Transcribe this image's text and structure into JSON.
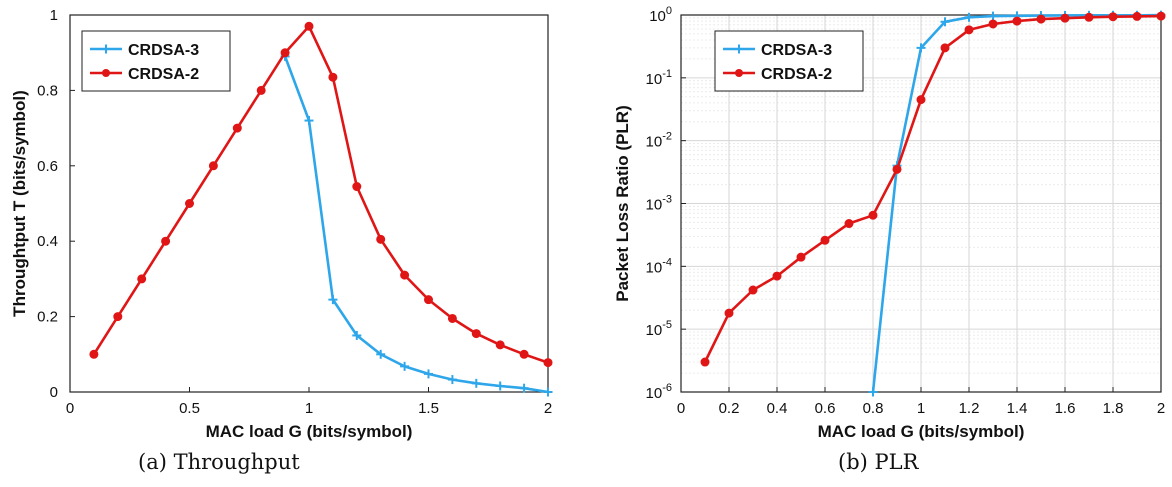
{
  "colors": {
    "crdsa3": "#2ea6ea",
    "crdsa2": "#e01616",
    "axis": "#222222",
    "grid": "#d6d6d6",
    "minorgrid": "#ececec"
  },
  "captions": {
    "a": "(a) Throughput",
    "b": "(b) PLR"
  },
  "chart_data": [
    {
      "type": "line",
      "title": "",
      "xlabel": "MAC load G (bits/symbol)",
      "ylabel": "Throughtput T (bits/symbol)",
      "xlim": [
        0,
        2
      ],
      "ylim": [
        0,
        1
      ],
      "xticks": [
        "0",
        "0.5",
        "1",
        "1.5",
        "2"
      ],
      "yticks": [
        "0",
        "0.2",
        "0.4",
        "0.6",
        "0.8",
        "1"
      ],
      "grid": false,
      "legend_position": "top-left",
      "series": [
        {
          "name": "CRDSA-3",
          "marker": "plus",
          "x": [
            0.9,
            1.0,
            1.1,
            1.2,
            1.3,
            1.4,
            1.5,
            1.6,
            1.7,
            1.8,
            1.9,
            2.0
          ],
          "y": [
            0.89,
            0.72,
            0.245,
            0.15,
            0.1,
            0.068,
            0.048,
            0.033,
            0.023,
            0.016,
            0.01,
            0.0
          ]
        },
        {
          "name": "CRDSA-2",
          "marker": "dot",
          "x": [
            0.1,
            0.2,
            0.3,
            0.4,
            0.5,
            0.6,
            0.7,
            0.8,
            0.9,
            1.0,
            1.1,
            1.2,
            1.3,
            1.4,
            1.5,
            1.6,
            1.7,
            1.8,
            1.9,
            2.0
          ],
          "y": [
            0.1,
            0.2,
            0.3,
            0.4,
            0.5,
            0.6,
            0.7,
            0.8,
            0.9,
            0.97,
            0.835,
            0.545,
            0.405,
            0.31,
            0.245,
            0.195,
            0.155,
            0.125,
            0.1,
            0.078
          ]
        }
      ]
    },
    {
      "type": "line",
      "title": "",
      "xlabel": "MAC load G (bits/symbol)",
      "ylabel": "Packet Loss Ratio (PLR)",
      "xlim": [
        0,
        2
      ],
      "ylim": [
        1e-06,
        1
      ],
      "yscale": "log",
      "xticks": [
        "0",
        "0.2",
        "0.4",
        "0.6",
        "0.8",
        "1",
        "1.2",
        "1.4",
        "1.6",
        "1.8",
        "2"
      ],
      "yticks": [
        {
          "base": "10",
          "exp": "-6"
        },
        {
          "base": "10",
          "exp": "-5"
        },
        {
          "base": "10",
          "exp": "-4"
        },
        {
          "base": "10",
          "exp": "-3"
        },
        {
          "base": "10",
          "exp": "-2"
        },
        {
          "base": "10",
          "exp": "-1"
        },
        {
          "base": "10",
          "exp": "0"
        }
      ],
      "grid": true,
      "legend_position": "top-left",
      "series": [
        {
          "name": "CRDSA-3",
          "marker": "plus",
          "x": [
            0.8,
            0.9,
            1.0,
            1.1,
            1.2,
            1.3,
            1.4,
            1.5,
            1.6,
            1.7,
            1.8,
            1.9,
            2.0
          ],
          "y": [
            1e-06,
            0.004,
            0.3,
            0.78,
            0.92,
            0.96,
            0.97,
            0.98,
            0.985,
            0.99,
            0.99,
            0.99,
            0.995
          ]
        },
        {
          "name": "CRDSA-2",
          "marker": "dot",
          "x": [
            0.1,
            0.2,
            0.3,
            0.4,
            0.5,
            0.6,
            0.7,
            0.8,
            0.9,
            1.0,
            1.1,
            1.2,
            1.3,
            1.4,
            1.5,
            1.6,
            1.7,
            1.8,
            1.9,
            2.0
          ],
          "y": [
            3e-06,
            1.8e-05,
            4.2e-05,
            7e-05,
            0.00014,
            0.00026,
            0.00048,
            0.00065,
            0.0035,
            0.045,
            0.3,
            0.58,
            0.72,
            0.8,
            0.86,
            0.89,
            0.92,
            0.94,
            0.95,
            0.96
          ]
        }
      ]
    }
  ]
}
